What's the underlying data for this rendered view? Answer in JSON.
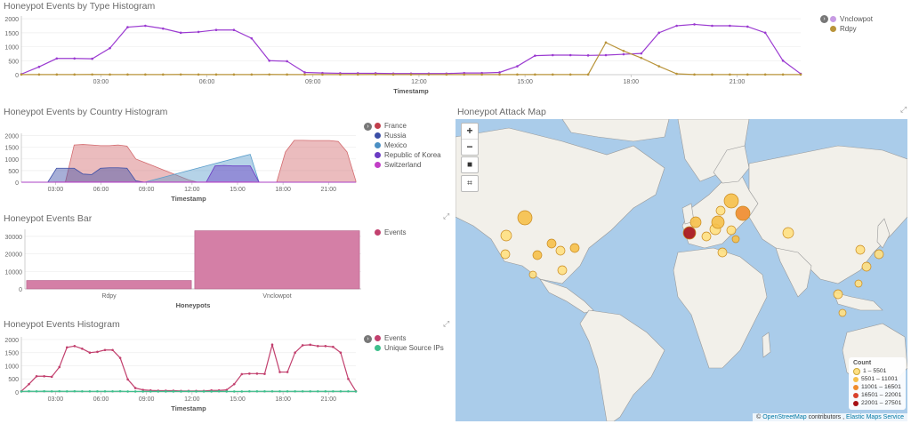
{
  "panels": {
    "type_histogram": {
      "title": "Honeypot Events by Type Histogram",
      "xlabel": "Timestamp"
    },
    "country_histogram": {
      "title": "Honeypot Events by Country Histogram",
      "xlabel": "Timestamp"
    },
    "bar": {
      "title": "Honeypot Events Bar",
      "xlabel": "Honeypots"
    },
    "events_histogram": {
      "title": "Honeypot Events Histogram",
      "xlabel": "Timestamp"
    },
    "map": {
      "title": "Honeypot Attack Map"
    }
  },
  "map": {
    "zoom_in": "+",
    "zoom_out": "−",
    "legend_title": "Count",
    "legend": [
      {
        "label": "1 – 5501",
        "color": "#ffe082"
      },
      {
        "label": "5501 – 11001",
        "color": "#f6c04a"
      },
      {
        "label": "11001 – 16501",
        "color": "#ef8b2c"
      },
      {
        "label": "16501 – 22001",
        "color": "#d8402c"
      },
      {
        "label": "22001 – 27501",
        "color": "#a50f15"
      }
    ],
    "attr_symbol": "©",
    "attr_osm": "OpenStreetMap",
    "attr_mid": "contributors ,",
    "attr_ems": "Elastic Maps Service"
  },
  "chart_data": [
    {
      "id": "type",
      "type": "line",
      "ticks_y": [
        0,
        500,
        1000,
        1500,
        2000
      ],
      "y_tick_labels": [
        "0",
        "500",
        "1000",
        "1500",
        "2000"
      ],
      "x_tick_labels": [
        "03:00",
        "06:00",
        "09:00",
        "12:00",
        "15:00",
        "18:00",
        "21:00"
      ],
      "ylim": [
        0,
        2100
      ],
      "series": [
        {
          "name": "Vnclowpot",
          "color": "#9b3bd1",
          "values": [
            20,
            280,
            580,
            580,
            570,
            950,
            1700,
            1750,
            1650,
            1500,
            1530,
            1600,
            1600,
            1300,
            500,
            480,
            80,
            60,
            50,
            50,
            50,
            40,
            40,
            40,
            40,
            60,
            60,
            80,
            300,
            680,
            700,
            700,
            690,
            700,
            730,
            760,
            1500,
            1750,
            1800,
            1750,
            1750,
            1720,
            1500,
            500,
            30
          ]
        },
        {
          "name": "Rdpy",
          "color": "#b9943a",
          "values": [
            5,
            5,
            5,
            5,
            8,
            5,
            5,
            5,
            5,
            8,
            5,
            5,
            5,
            5,
            8,
            5,
            5,
            5,
            5,
            5,
            8,
            5,
            5,
            5,
            5,
            5,
            5,
            5,
            5,
            5,
            5,
            5,
            5,
            1150,
            850,
            600,
            300,
            30,
            5,
            5,
            5,
            5,
            5,
            5,
            5
          ]
        }
      ]
    },
    {
      "id": "country",
      "type": "area",
      "ticks_y": [
        0,
        500,
        1000,
        1500,
        2000
      ],
      "y_tick_labels": [
        "0",
        "500",
        "1000",
        "1500",
        "2000"
      ],
      "x_tick_labels": [
        "03:00",
        "06:00",
        "09:00",
        "12:00",
        "15:00",
        "18:00",
        "21:00"
      ],
      "ylim": [
        0,
        2100
      ],
      "series": [
        {
          "name": "France",
          "color": "#d36a6e",
          "values": [
            0,
            0,
            0,
            0,
            0,
            0,
            1600,
            1620,
            1600,
            1570,
            1570,
            1600,
            1550,
            1000,
            850,
            700,
            550,
            400,
            250,
            100,
            0,
            0,
            0,
            0,
            0,
            0,
            0,
            0,
            0,
            0,
            1300,
            1800,
            1800,
            1790,
            1790,
            1790,
            1750,
            1300,
            50
          ]
        },
        {
          "name": "Russia",
          "color": "#3b4ea6",
          "values": [
            0,
            0,
            0,
            0,
            600,
            600,
            600,
            350,
            330,
            600,
            620,
            620,
            600,
            60,
            0,
            0,
            0,
            0,
            0,
            0,
            0,
            0,
            0,
            0,
            0,
            0,
            0,
            0,
            0,
            0,
            0,
            0,
            0,
            0,
            0,
            0,
            0,
            0,
            0
          ]
        },
        {
          "name": "Mexico",
          "color": "#5b9ecb",
          "values": [
            0,
            0,
            0,
            0,
            0,
            0,
            0,
            0,
            0,
            0,
            0,
            0,
            0,
            0,
            0,
            100,
            200,
            300,
            400,
            500,
            600,
            700,
            800,
            900,
            1000,
            1100,
            1200,
            0,
            0,
            0,
            0,
            0,
            0,
            0,
            0,
            0,
            0,
            0,
            0
          ]
        },
        {
          "name": "Republic of Korea",
          "color": "#6b3bc4",
          "values": [
            0,
            0,
            0,
            0,
            0,
            0,
            0,
            0,
            0,
            0,
            0,
            0,
            0,
            0,
            0,
            0,
            0,
            0,
            0,
            0,
            0,
            0,
            700,
            720,
            700,
            700,
            700,
            0,
            0,
            0,
            0,
            0,
            0,
            0,
            0,
            0,
            0,
            0,
            0
          ]
        },
        {
          "name": "Switzerland",
          "color": "#c23ec7",
          "values": [
            0,
            0,
            0,
            0,
            10,
            10,
            10,
            10,
            10,
            10,
            10,
            10,
            10,
            10,
            10,
            10,
            10,
            10,
            10,
            10,
            10,
            10,
            10,
            10,
            10,
            10,
            10,
            0,
            0,
            0,
            0,
            0,
            0,
            0,
            0,
            0,
            0,
            0,
            0
          ]
        }
      ]
    },
    {
      "id": "bar",
      "type": "bar",
      "categories": [
        "Rdpy",
        "Vnclowpot"
      ],
      "ticks_y": [
        0,
        10000,
        20000,
        30000
      ],
      "y_tick_labels": [
        "0",
        "10000",
        "20000",
        "30000"
      ],
      "ylim": [
        0,
        34000
      ],
      "series": [
        {
          "name": "Events",
          "color": "#d47fa6",
          "values": [
            4800,
            33200
          ]
        }
      ]
    },
    {
      "id": "events",
      "type": "line",
      "ticks_y": [
        0,
        500,
        1000,
        1500,
        2000
      ],
      "y_tick_labels": [
        "0",
        "500",
        "1000",
        "1500",
        "2000"
      ],
      "x_tick_labels": [
        "03:00",
        "06:00",
        "09:00",
        "12:00",
        "15:00",
        "18:00",
        "21:00"
      ],
      "ylim": [
        0,
        2100
      ],
      "series": [
        {
          "name": "Events",
          "color": "#c2406e",
          "values": [
            30,
            300,
            600,
            600,
            580,
            950,
            1700,
            1750,
            1650,
            1500,
            1530,
            1600,
            1600,
            1300,
            480,
            150,
            80,
            60,
            50,
            50,
            50,
            40,
            40,
            40,
            40,
            60,
            60,
            80,
            300,
            680,
            700,
            700,
            690,
            1800,
            760,
            760,
            1500,
            1780,
            1800,
            1750,
            1750,
            1720,
            1500,
            500,
            30
          ]
        },
        {
          "name": "Unique Source IPs",
          "color": "#3fbf8c",
          "values": [
            20,
            30,
            25,
            30,
            25,
            30,
            25,
            30,
            25,
            25,
            25,
            25,
            25,
            30,
            20,
            20,
            20,
            20,
            20,
            20,
            20,
            20,
            25,
            20,
            20,
            20,
            25,
            20,
            20,
            20,
            25,
            25,
            25,
            25,
            25,
            25,
            25,
            25,
            25,
            25,
            25,
            25,
            25,
            25,
            20
          ]
        }
      ]
    }
  ]
}
